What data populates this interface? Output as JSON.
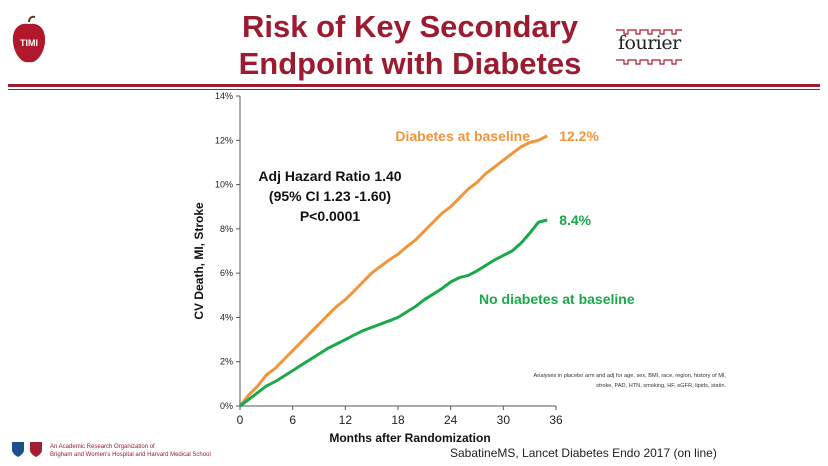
{
  "header": {
    "title_line1": "Risk of Key Secondary",
    "title_line2": "Endpoint with Diabetes",
    "left_logo_text": "TIMI",
    "right_logo_text": "fourier"
  },
  "chart_data": {
    "type": "line",
    "xlabel": "Months after Randomization",
    "ylabel": "CV Death, MI, Stroke",
    "xlim": [
      0,
      36
    ],
    "ylim": [
      0,
      14
    ],
    "x_ticks": [
      "0",
      "6",
      "12",
      "18",
      "24",
      "30",
      "36"
    ],
    "y_ticks": [
      "0%",
      "2%",
      "4%",
      "6%",
      "8%",
      "10%",
      "12%",
      "14%"
    ],
    "series": [
      {
        "name": "Diabetes at baseline",
        "color": "#f0953a",
        "end_label": "12.2%",
        "x": [
          0,
          1,
          2,
          3,
          4,
          5,
          6,
          7,
          8,
          9,
          10,
          11,
          12,
          13,
          14,
          15,
          16,
          17,
          18,
          19,
          20,
          21,
          22,
          23,
          24,
          25,
          26,
          27,
          28,
          29,
          30,
          31,
          32,
          33,
          34,
          35
        ],
        "y": [
          0,
          0.5,
          0.9,
          1.4,
          1.7,
          2.1,
          2.5,
          2.9,
          3.3,
          3.7,
          4.1,
          4.5,
          4.8,
          5.2,
          5.6,
          6.0,
          6.3,
          6.6,
          6.85,
          7.2,
          7.5,
          7.9,
          8.3,
          8.7,
          9.0,
          9.4,
          9.8,
          10.1,
          10.5,
          10.8,
          11.1,
          11.4,
          11.7,
          11.9,
          12.0,
          12.2
        ]
      },
      {
        "name": "No diabetes at baseline",
        "color": "#1aa84a",
        "end_label": "8.4%",
        "x": [
          0,
          1,
          2,
          3,
          4,
          5,
          6,
          7,
          8,
          9,
          10,
          11,
          12,
          13,
          14,
          15,
          16,
          17,
          18,
          19,
          20,
          21,
          22,
          23,
          24,
          25,
          26,
          27,
          28,
          29,
          30,
          31,
          32,
          33,
          34,
          35
        ],
        "y": [
          0,
          0.3,
          0.6,
          0.9,
          1.1,
          1.35,
          1.6,
          1.85,
          2.1,
          2.35,
          2.6,
          2.8,
          3.0,
          3.2,
          3.4,
          3.55,
          3.7,
          3.85,
          4.0,
          4.25,
          4.5,
          4.8,
          5.05,
          5.3,
          5.6,
          5.8,
          5.9,
          6.1,
          6.35,
          6.6,
          6.8,
          7.0,
          7.35,
          7.8,
          8.3,
          8.4
        ]
      }
    ],
    "annotation": {
      "line1": "Adj Hazard Ratio 1.40",
      "line2": "(95% CI 1.23 -1.60)",
      "line3": "P<0.0001"
    },
    "footnote": {
      "line1": "Analyses in placebo arm and adj for age, sex, BMI, race, region, history of MI,",
      "line2": "stroke, PAD, HTN, smoking, HF, eGFR, lipids, statin."
    }
  },
  "footer": {
    "org_line1": "An Academic Research Organization of",
    "org_line2": "Brigham and Women's Hospital and Harvard Medical School",
    "citation": "SabatineMS, Lancet Diabetes Endo 2017 (on line)"
  },
  "colors": {
    "brand": "#9b1b30",
    "diabetes": "#f0953a",
    "no_diabetes": "#1aa84a"
  }
}
